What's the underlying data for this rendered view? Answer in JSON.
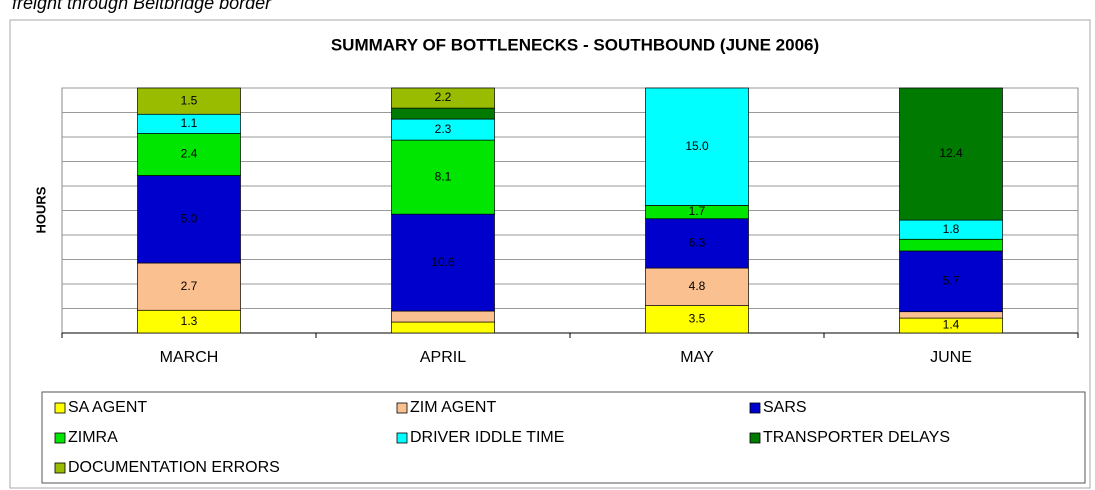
{
  "caption": "freight through Beitbridge border",
  "chart_data": {
    "type": "bar",
    "stacking": "percent",
    "title": "SUMMARY OF BOTTLENECKS - SOUTHBOUND (JUNE 2006)",
    "y_label": "HOURS",
    "categories": [
      "MARCH",
      "APRIL",
      "MAY",
      "JUNE"
    ],
    "ylim": [
      0,
      100
    ],
    "yticks": [
      0,
      10,
      20,
      30,
      40,
      50,
      60,
      70,
      80,
      90,
      100
    ],
    "grid": true,
    "series": [
      {
        "name": "SA AGENT",
        "color": "#ffff00",
        "values": [
          1.3,
          1.2,
          3.5,
          1.4
        ],
        "value_labels": [
          "1.3",
          null,
          "3.5",
          "1.4"
        ]
      },
      {
        "name": "ZIM AGENT",
        "color": "#fac090",
        "values": [
          2.7,
          1.2,
          4.8,
          0.6
        ],
        "value_labels": [
          "2.7",
          null,
          "4.8",
          null
        ]
      },
      {
        "name": "SARS",
        "color": "#0000cc",
        "values": [
          5.0,
          10.6,
          6.3,
          5.7
        ],
        "value_labels": [
          "5.0",
          "10.6",
          "6.3",
          "5.7"
        ]
      },
      {
        "name": "ZIMRA",
        "color": "#00e600",
        "values": [
          2.4,
          8.1,
          1.7,
          1.1
        ],
        "value_labels": [
          "2.4",
          "8.1",
          "1.7",
          null
        ]
      },
      {
        "name": "DRIVER IDDLE TIME",
        "color": "#00ffff",
        "values": [
          1.1,
          2.3,
          15.0,
          1.8
        ],
        "value_labels": [
          "1.1",
          "2.3",
          "15.0",
          "1.8"
        ]
      },
      {
        "name": "TRANSPORTER DELAYS",
        "color": "#007a00",
        "values": [
          0,
          1.2,
          0,
          12.4
        ],
        "value_labels": [
          null,
          null,
          null,
          "12.4"
        ]
      },
      {
        "name": "DOCUMENTATION ERRORS",
        "color": "#99bb00",
        "values": [
          1.5,
          2.2,
          0,
          0
        ],
        "value_labels": [
          "1.5",
          "2.2",
          null,
          null
        ]
      }
    ]
  }
}
